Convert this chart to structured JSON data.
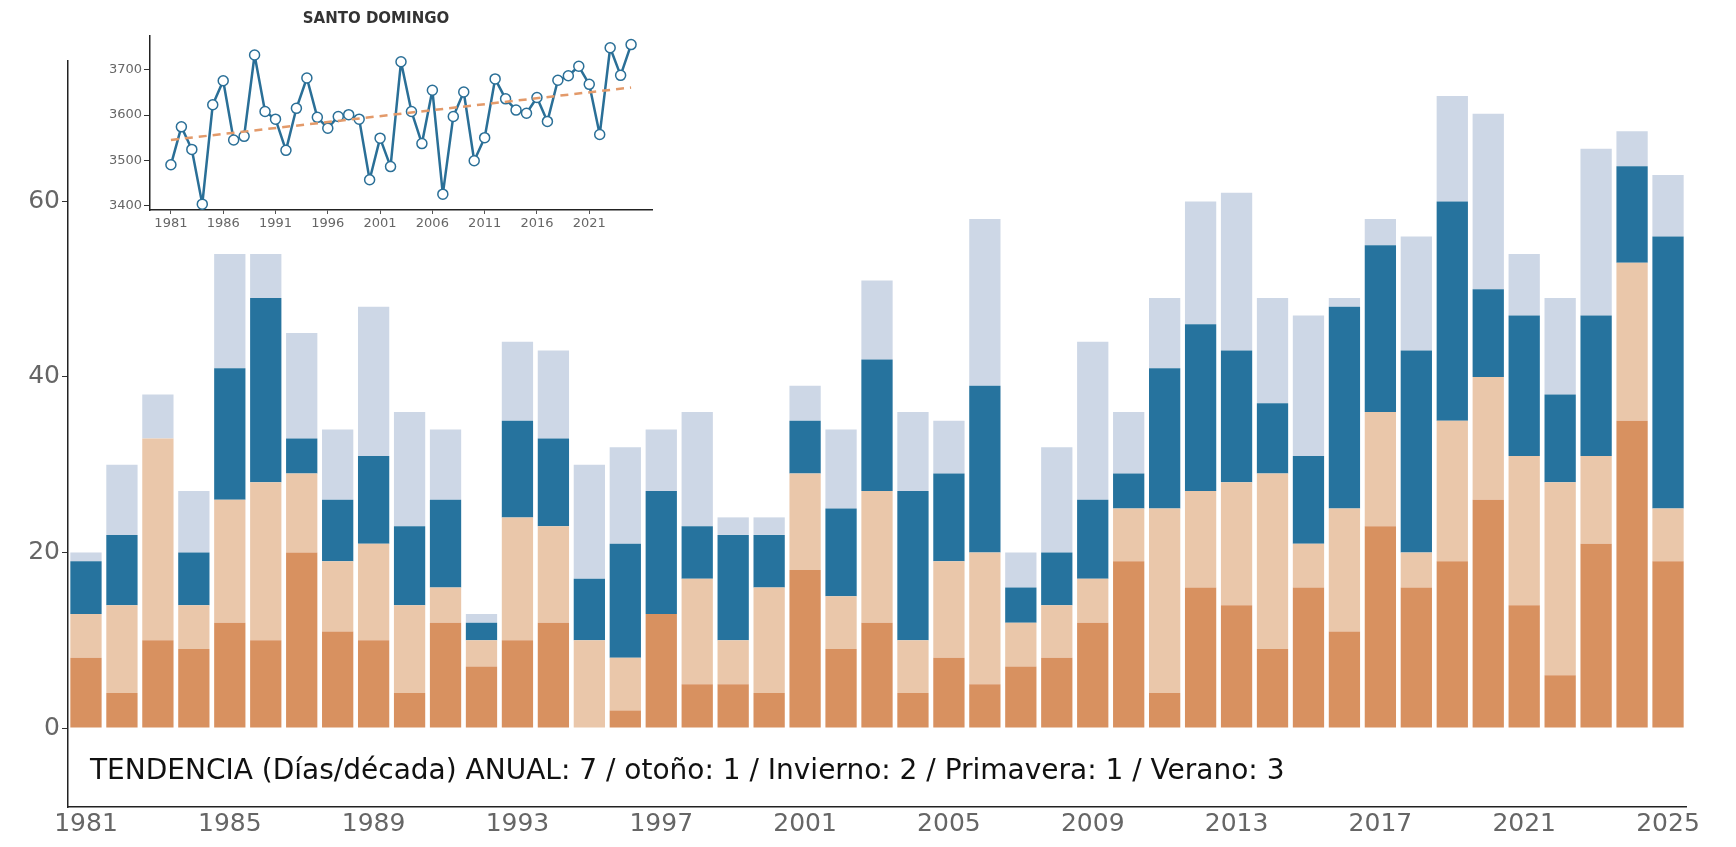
{
  "chart_data": [
    {
      "type": "bar",
      "stacked": true,
      "legend": false,
      "grid": false,
      "categories": [
        "1981",
        null,
        null,
        null,
        "1985",
        null,
        null,
        null,
        "1989",
        null,
        null,
        null,
        "1993",
        null,
        null,
        null,
        "1997",
        null,
        null,
        null,
        "2001",
        null,
        null,
        null,
        "2005",
        null,
        null,
        null,
        "2009",
        null,
        null,
        null,
        "2013",
        null,
        null,
        null,
        "2017",
        null,
        null,
        null,
        "2021",
        null,
        null,
        null,
        "2025"
      ],
      "ylim": [
        -9,
        76
      ],
      "yticks": [
        0,
        20,
        40,
        60
      ],
      "series": [
        {
          "color": "#d89160",
          "values": [
            8,
            4,
            10,
            9,
            12,
            10,
            20,
            11,
            10,
            4,
            12,
            7,
            10,
            12,
            0,
            2,
            13,
            5,
            5,
            4,
            18,
            9,
            12,
            4,
            8,
            5,
            7,
            8,
            12,
            19,
            4,
            16,
            14,
            9,
            16,
            11,
            23,
            16,
            19,
            26,
            14,
            6,
            21,
            35,
            19
          ]
        },
        {
          "color": "#eac7aa",
          "values": [
            5,
            10,
            23,
            5,
            14,
            18,
            9,
            8,
            11,
            10,
            4,
            3,
            14,
            11,
            10,
            6,
            0,
            12,
            5,
            12,
            11,
            6,
            15,
            6,
            11,
            15,
            5,
            6,
            5,
            6,
            21,
            11,
            14,
            20,
            5,
            14,
            13,
            4,
            16,
            14,
            17,
            22,
            10,
            18,
            6
          ]
        },
        {
          "color": "#26739e",
          "values": [
            6,
            8,
            0,
            6,
            15,
            21,
            4,
            7,
            10,
            9,
            10,
            2,
            11,
            10,
            7,
            13,
            14,
            6,
            12,
            6,
            6,
            10,
            15,
            17,
            10,
            19,
            4,
            6,
            9,
            4,
            16,
            19,
            15,
            8,
            10,
            23,
            19,
            23,
            25,
            10,
            16,
            10,
            16,
            11,
            31
          ]
        },
        {
          "color": "#cdd7e6",
          "values": [
            1,
            8,
            5,
            7,
            13,
            5,
            12,
            8,
            17,
            13,
            8,
            1,
            9,
            10,
            13,
            11,
            7,
            13,
            2,
            2,
            4,
            9,
            9,
            9,
            6,
            19,
            4,
            12,
            18,
            7,
            8,
            14,
            18,
            12,
            16,
            1,
            3,
            13,
            12,
            20,
            7,
            11,
            19,
            4,
            7
          ]
        }
      ],
      "annotations": [
        "TENDENCIA (Días/década) ANUAL: 7 / otoño: 1 / Invierno: 2 / Primavera: 1 / Verano: 3"
      ]
    },
    {
      "type": "line",
      "title": "SANTO DOMINGO",
      "legend": false,
      "grid": false,
      "marker": "circle",
      "x": [
        1981,
        1982,
        1983,
        1984,
        1985,
        1986,
        1987,
        1988,
        1989,
        1990,
        1991,
        1992,
        1993,
        1994,
        1995,
        1996,
        1997,
        1998,
        1999,
        2000,
        2001,
        2002,
        2003,
        2004,
        2005,
        2006,
        2007,
        2008,
        2009,
        2010,
        2011,
        2012,
        2013,
        2014,
        2015,
        2016,
        2017,
        2018,
        2019,
        2020,
        2021,
        2022,
        2023,
        2024,
        2025
      ],
      "xlim": [
        1979,
        2027
      ],
      "xticks": [
        1981,
        1986,
        1991,
        1996,
        2001,
        2006,
        2011,
        2016,
        2021
      ],
      "ylim": [
        3390,
        3775
      ],
      "yticks": [
        3400,
        3500,
        3600,
        3700
      ],
      "series": [
        {
          "color": "#2a6f97",
          "values": [
            3490,
            3574,
            3524,
            3403,
            3623,
            3676,
            3545,
            3553,
            3733,
            3608,
            3591,
            3522,
            3615,
            3682,
            3595,
            3571,
            3597,
            3601,
            3591,
            3457,
            3549,
            3486,
            3718,
            3608,
            3537,
            3655,
            3425,
            3597,
            3651,
            3499,
            3550,
            3680,
            3636,
            3611,
            3604,
            3639,
            3586,
            3677,
            3687,
            3708,
            3668,
            3557,
            3749,
            3688,
            3756
          ]
        },
        {
          "type": "line",
          "x": [
            1981,
            2025
          ],
          "values": [
            3545,
            3661
          ],
          "color": "#e39a6a",
          "line_style": "dashed",
          "marker": "none"
        }
      ]
    }
  ]
}
